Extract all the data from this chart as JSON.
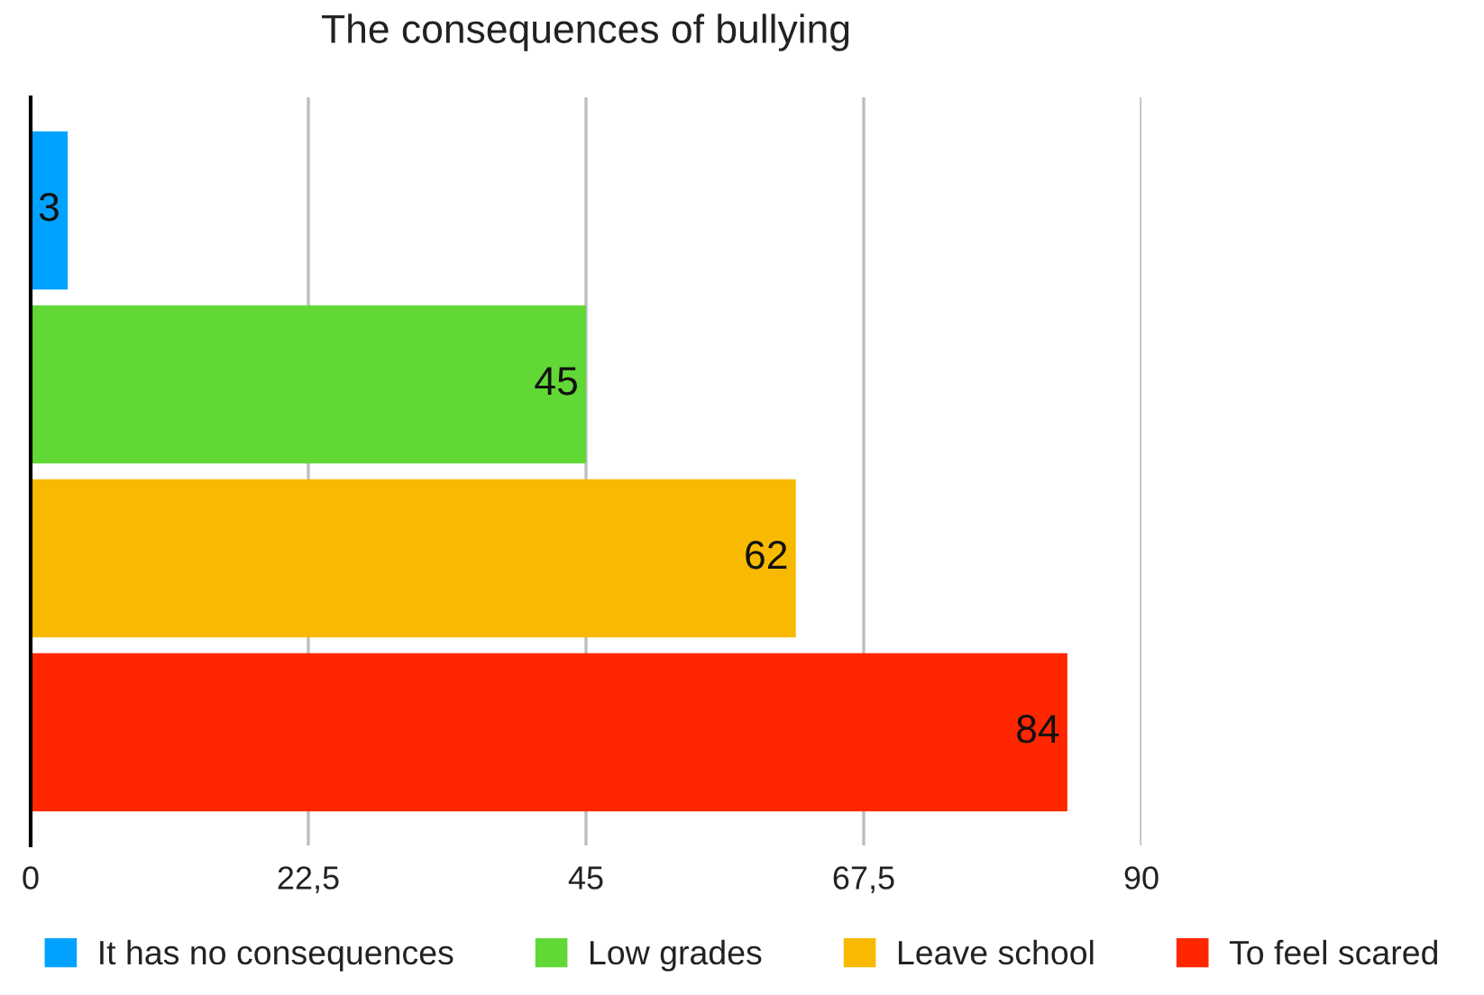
{
  "chart_data": {
    "type": "bar",
    "title": "The consequences of bullying",
    "orientation": "horizontal",
    "stacked": true,
    "categories": [
      null,
      null,
      null,
      null
    ],
    "series": [
      {
        "name": "It has no consequences",
        "color": "#00a2ff",
        "values": [
          3,
          null,
          null,
          null
        ]
      },
      {
        "name": "Low grades",
        "color": "#61d836",
        "values": [
          null,
          45,
          null,
          null
        ]
      },
      {
        "name": "Leave school",
        "color": "#f8ba00",
        "values": [
          null,
          null,
          62,
          null
        ]
      },
      {
        "name": "To feel scared",
        "color": "#ff2600",
        "values": [
          null,
          null,
          null,
          84
        ]
      }
    ],
    "xlim": [
      0,
      90
    ],
    "xticks": [
      0,
      {
        "value": 22.5,
        "label": "22,5"
      },
      45,
      {
        "value": 67.5,
        "label": "67,5"
      },
      90
    ],
    "grid": "x",
    "legend": "bottom",
    "data_labels": true
  }
}
